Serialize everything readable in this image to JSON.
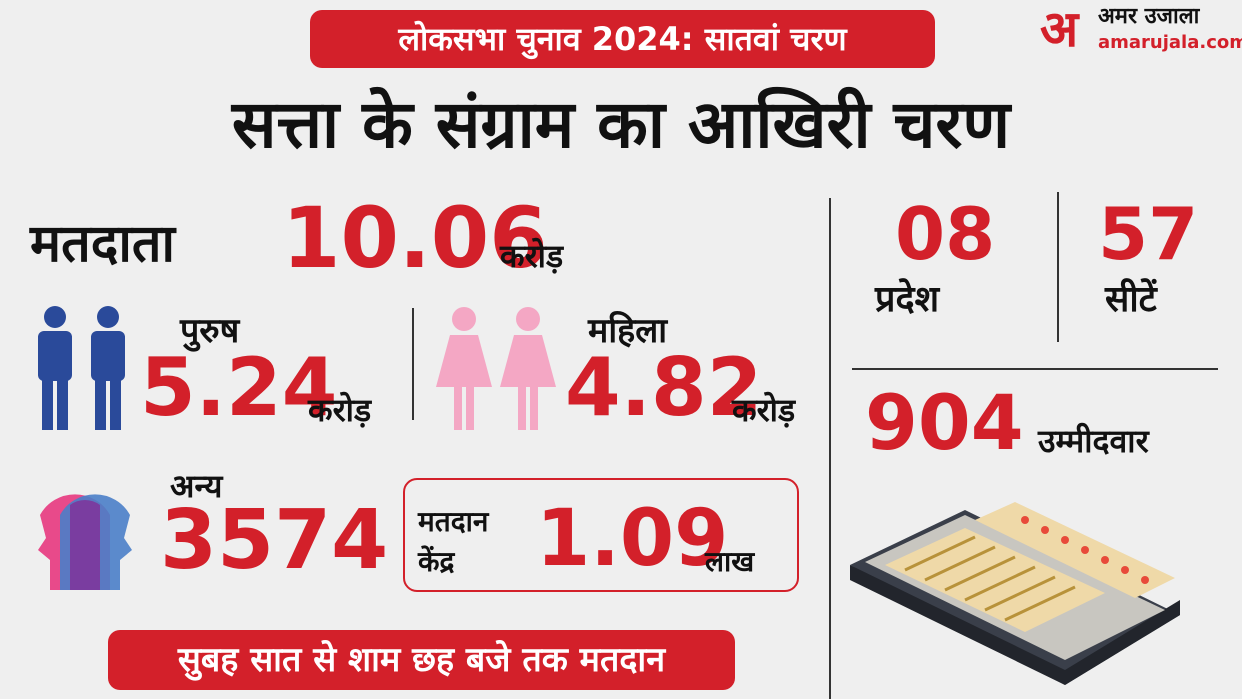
{
  "banner": "लोकसभा चुनाव 2024: सातवां चरण",
  "logo": {
    "mark": "अ",
    "name": "अमर उजाला",
    "site": "amarujala.com"
  },
  "headline": "सत्ता के संग्राम का आखिरी चरण",
  "voters": {
    "label": "मतदाता",
    "value": "10.06",
    "unit": "करोड़"
  },
  "male": {
    "label": "पुरुष",
    "value": "5.24",
    "unit": "करोड़"
  },
  "female": {
    "label": "महिला",
    "value": "4.82",
    "unit": "करोड़"
  },
  "other": {
    "label": "अन्य",
    "value": "3574"
  },
  "booths": {
    "label1": "मतदान",
    "label2": "केंद्र",
    "value": "1.09",
    "unit": "लाख"
  },
  "timing": "सुबह सात से शाम छह बजे तक मतदान",
  "states": {
    "value": "08",
    "label": "प्रदेश"
  },
  "seats": {
    "value": "57",
    "label": "सीटें"
  },
  "candidates": {
    "value": "904",
    "label": "उम्मीदवार"
  }
}
